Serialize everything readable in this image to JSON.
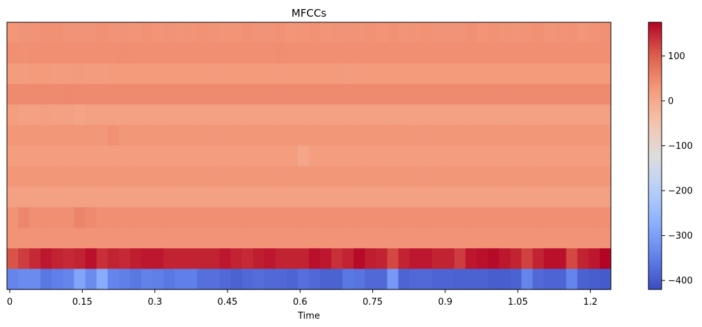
{
  "chart_data": {
    "type": "heatmap",
    "title": "MFCCs",
    "xlabel": "Time",
    "ylabel": "",
    "x_ticks": [
      "0",
      "0.15",
      "0.3",
      "0.45",
      "0.6",
      "0.75",
      "0.9",
      "1.05",
      "1.2"
    ],
    "x_tick_values": [
      0,
      0.15,
      0.3,
      0.45,
      0.6,
      0.75,
      0.9,
      1.05,
      1.2
    ],
    "xlim": [
      -0.0058,
      1.2423
    ],
    "n_frames": 54,
    "n_coefficients": 13,
    "colormap": "coolwarm",
    "colorbar": {
      "ticks": [
        100,
        0,
        -100,
        -200,
        -300,
        -400
      ],
      "tick_labels": [
        "100",
        "0",
        "−100",
        "−200",
        "−300",
        "−400"
      ],
      "vmin": -420,
      "vmax": 175
    },
    "rows_note": "rows listed top to bottom on screen (coefficient 12 ... coefficient 0)",
    "row_means": [
      35,
      40,
      25,
      45,
      15,
      30,
      20,
      30,
      15,
      40,
      35,
      150,
      -380
    ],
    "rows": [
      [
        30,
        35,
        35,
        38,
        38,
        35,
        35,
        35,
        38,
        35,
        35,
        34,
        37,
        34,
        35,
        34,
        35,
        37,
        35,
        34,
        34,
        36,
        35,
        35,
        37,
        32,
        34,
        37,
        34,
        35,
        35,
        35,
        37,
        33,
        36,
        34,
        35,
        37,
        35,
        35,
        35,
        38,
        34,
        36,
        35,
        33,
        35,
        38,
        34,
        35,
        36,
        31,
        35,
        38
      ],
      [
        40,
        38,
        40,
        40,
        40,
        40,
        40,
        40,
        40,
        40,
        42,
        40,
        40,
        40,
        40,
        40,
        40,
        40,
        40,
        40,
        40,
        40,
        40,
        40,
        42,
        40,
        40,
        40,
        40,
        40,
        40,
        40,
        40,
        40,
        40,
        40,
        40,
        40,
        40,
        40,
        40,
        40,
        40,
        40,
        40,
        40,
        40,
        40,
        40,
        40,
        40,
        40,
        40,
        40
      ],
      [
        22,
        22,
        25,
        25,
        22,
        22,
        25,
        22,
        22,
        25,
        25,
        25,
        25,
        25,
        25,
        25,
        25,
        25,
        25,
        25,
        25,
        25,
        25,
        25,
        25,
        25,
        25,
        25,
        25,
        25,
        22,
        25,
        25,
        25,
        25,
        25,
        25,
        25,
        25,
        25,
        25,
        25,
        25,
        25,
        25,
        25,
        25,
        25,
        25,
        25,
        25,
        25,
        25,
        25
      ],
      [
        45,
        45,
        45,
        45,
        45,
        48,
        45,
        45,
        45,
        45,
        45,
        45,
        45,
        45,
        45,
        45,
        45,
        45,
        45,
        45,
        45,
        45,
        45,
        45,
        45,
        45,
        45,
        45,
        45,
        45,
        45,
        45,
        45,
        45,
        45,
        45,
        45,
        45,
        45,
        45,
        45,
        45,
        45,
        45,
        45,
        45,
        45,
        45,
        45,
        45,
        45,
        45,
        45,
        45
      ],
      [
        20,
        15,
        15,
        18,
        15,
        15,
        10,
        15,
        15,
        15,
        15,
        15,
        15,
        15,
        15,
        15,
        15,
        15,
        15,
        15,
        15,
        15,
        15,
        15,
        15,
        15,
        15,
        15,
        15,
        15,
        15,
        15,
        15,
        15,
        15,
        15,
        15,
        15,
        15,
        15,
        15,
        15,
        15,
        15,
        15,
        15,
        15,
        15,
        15,
        15,
        15,
        15,
        15,
        15
      ],
      [
        30,
        30,
        30,
        30,
        30,
        30,
        30,
        30,
        30,
        38,
        30,
        30,
        30,
        30,
        30,
        30,
        30,
        30,
        30,
        30,
        30,
        30,
        30,
        30,
        30,
        30,
        30,
        30,
        30,
        30,
        30,
        30,
        30,
        30,
        30,
        30,
        30,
        30,
        30,
        30,
        30,
        30,
        30,
        30,
        30,
        30,
        30,
        30,
        30,
        30,
        30,
        30,
        30,
        30
      ],
      [
        20,
        20,
        20,
        20,
        20,
        20,
        20,
        20,
        20,
        20,
        20,
        20,
        20,
        20,
        20,
        20,
        20,
        20,
        20,
        20,
        20,
        20,
        20,
        20,
        20,
        20,
        5,
        20,
        20,
        20,
        20,
        20,
        20,
        20,
        20,
        20,
        20,
        20,
        20,
        20,
        20,
        20,
        20,
        20,
        20,
        20,
        20,
        20,
        20,
        20,
        20,
        20,
        20,
        20
      ],
      [
        30,
        30,
        30,
        30,
        30,
        30,
        30,
        30,
        30,
        30,
        30,
        30,
        30,
        30,
        30,
        30,
        30,
        30,
        30,
        30,
        30,
        30,
        30,
        30,
        30,
        30,
        30,
        30,
        30,
        30,
        30,
        30,
        30,
        30,
        30,
        30,
        30,
        30,
        30,
        30,
        30,
        30,
        30,
        30,
        30,
        30,
        30,
        30,
        30,
        30,
        30,
        30,
        30,
        30
      ],
      [
        15,
        15,
        15,
        15,
        15,
        15,
        15,
        15,
        15,
        15,
        15,
        15,
        15,
        15,
        15,
        15,
        15,
        15,
        15,
        15,
        15,
        15,
        15,
        15,
        15,
        15,
        15,
        15,
        15,
        15,
        15,
        15,
        15,
        15,
        15,
        15,
        15,
        15,
        15,
        15,
        15,
        15,
        15,
        15,
        15,
        15,
        15,
        15,
        15,
        15,
        15,
        15,
        15,
        15
      ],
      [
        35,
        50,
        40,
        40,
        40,
        40,
        55,
        45,
        40,
        40,
        40,
        40,
        40,
        40,
        40,
        40,
        40,
        40,
        40,
        40,
        40,
        40,
        40,
        40,
        40,
        40,
        40,
        40,
        40,
        40,
        40,
        40,
        40,
        40,
        40,
        40,
        40,
        40,
        40,
        40,
        40,
        40,
        40,
        40,
        40,
        40,
        40,
        40,
        40,
        40,
        40,
        40,
        40,
        40
      ],
      [
        35,
        35,
        35,
        35,
        35,
        35,
        35,
        35,
        35,
        35,
        35,
        35,
        35,
        35,
        35,
        35,
        35,
        35,
        35,
        35,
        35,
        35,
        35,
        35,
        35,
        35,
        35,
        35,
        35,
        35,
        35,
        35,
        35,
        35,
        35,
        35,
        35,
        35,
        35,
        35,
        35,
        35,
        35,
        35,
        35,
        35,
        35,
        35,
        35,
        35,
        35,
        35,
        35,
        35
      ],
      [
        110,
        130,
        145,
        160,
        150,
        145,
        150,
        165,
        140,
        150,
        145,
        155,
        160,
        160,
        150,
        150,
        150,
        150,
        150,
        160,
        150,
        145,
        155,
        160,
        150,
        150,
        150,
        165,
        160,
        140,
        150,
        170,
        155,
        150,
        120,
        150,
        160,
        160,
        150,
        150,
        130,
        160,
        165,
        170,
        160,
        150,
        125,
        150,
        165,
        165,
        120,
        150,
        160,
        175
      ],
      [
        -340,
        -330,
        -330,
        -360,
        -350,
        -340,
        -290,
        -330,
        -280,
        -340,
        -350,
        -360,
        -345,
        -350,
        -360,
        -350,
        -350,
        -370,
        -370,
        -380,
        -390,
        -380,
        -375,
        -380,
        -380,
        -385,
        -370,
        -380,
        -390,
        -390,
        -360,
        -365,
        -380,
        -380,
        -310,
        -385,
        -380,
        -380,
        -385,
        -385,
        -390,
        -390,
        -390,
        -395,
        -395,
        -390,
        -340,
        -380,
        -385,
        -385,
        -340,
        -390,
        -395,
        -400
      ]
    ]
  }
}
